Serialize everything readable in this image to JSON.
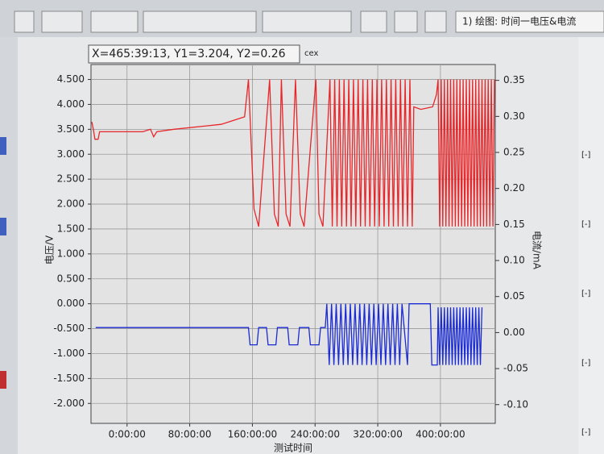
{
  "toolbar_title": "1) 绘图: 时间一电压&电流",
  "side_markers": [
    "[-]",
    "[-]",
    "[-]",
    "[-]",
    "[-]"
  ],
  "chart_data": {
    "type": "line",
    "readout": "X=465:39:13, Y1=3.204, Y2=0.26",
    "readout_note": "cex",
    "xlabel": "测试时间",
    "ylabel": "电压/V",
    "y2label": "电流/mA",
    "xlim": [
      -46,
      470
    ],
    "xticks": [
      {
        "value": 0,
        "label": "0:00:00"
      },
      {
        "value": 80,
        "label": "80:00:00"
      },
      {
        "value": 160,
        "label": "160:00:00"
      },
      {
        "value": 240,
        "label": "240:00:00"
      },
      {
        "value": 320,
        "label": "320:00:00"
      },
      {
        "value": 400,
        "label": "400:00:00"
      }
    ],
    "ylim": [
      -2.4,
      4.8
    ],
    "yticks": [
      {
        "value": 4.5,
        "label": "4.500"
      },
      {
        "value": 4,
        "label": "4.000"
      },
      {
        "value": 3.5,
        "label": "3.500"
      },
      {
        "value": 3,
        "label": "3.000"
      },
      {
        "value": 2.5,
        "label": "2.500"
      },
      {
        "value": 2,
        "label": "2.000"
      },
      {
        "value": 1.5,
        "label": "1.500"
      },
      {
        "value": 1,
        "label": "1.000"
      },
      {
        "value": 0.5,
        "label": "0.500"
      },
      {
        "value": 0,
        "label": "0.000"
      },
      {
        "value": -0.5,
        "label": "-0.500"
      },
      {
        "value": -1,
        "label": "-1.000"
      },
      {
        "value": -1.5,
        "label": "-1.500"
      },
      {
        "value": -2,
        "label": "-2.000"
      }
    ],
    "y2lim": [
      -0.126,
      0.372
    ],
    "y2ticks": [
      0.35,
      {
        "value": 0.3,
        "label": "0.30"
      },
      0.25,
      {
        "value": 0.2,
        "label": "0.20"
      },
      0.15,
      {
        "value": 0.1,
        "label": "0.10"
      },
      0.05,
      {
        "value": 0,
        "label": "0.00"
      },
      -0.05,
      {
        "value": -0.1,
        "label": "-0.10"
      }
    ],
    "grid": true,
    "series": [
      {
        "color": "#e8262a",
        "x": [
          -45,
          -43,
          -41,
          -37,
          -35,
          20,
          30,
          34,
          38,
          60,
          120,
          150,
          155,
          162,
          168,
          182,
          188,
          193,
          197,
          203,
          208,
          215,
          221,
          226,
          241,
          245,
          250,
          259,
          262,
          265,
          268,
          271,
          274,
          277,
          280,
          283,
          286,
          289,
          292,
          295,
          298,
          301,
          304,
          307,
          310,
          313,
          316,
          319,
          322,
          325,
          328,
          331,
          334,
          337,
          340,
          343,
          346,
          349,
          352,
          355,
          358,
          361,
          364,
          366,
          375,
          390,
          395,
          397,
          399,
          401,
          403,
          405,
          407,
          409,
          411,
          413,
          415,
          417,
          419,
          421,
          423,
          425,
          427,
          429,
          431,
          433,
          435,
          437,
          439,
          441,
          443,
          445,
          447,
          449,
          451,
          453,
          455,
          457,
          459,
          461,
          463,
          465,
          467,
          469
        ],
        "values": [
          3.65,
          3.5,
          3.3,
          3.3,
          3.45,
          3.45,
          3.5,
          3.35,
          3.45,
          3.5,
          3.6,
          3.75,
          4.5,
          1.9,
          1.55,
          4.5,
          1.8,
          1.55,
          4.5,
          1.8,
          1.55,
          4.5,
          1.8,
          1.55,
          4.5,
          1.8,
          1.55,
          4.5,
          1.55,
          4.5,
          1.55,
          4.5,
          1.55,
          4.5,
          1.55,
          4.5,
          1.55,
          4.5,
          1.55,
          4.5,
          1.55,
          4.5,
          1.55,
          4.5,
          1.55,
          4.5,
          1.55,
          4.5,
          1.55,
          4.5,
          1.55,
          4.5,
          1.55,
          4.5,
          1.55,
          4.5,
          1.55,
          4.5,
          1.55,
          4.5,
          1.55,
          4.5,
          1.55,
          3.95,
          3.9,
          3.95,
          4.2,
          4.5,
          1.55,
          4.5,
          1.55,
          4.5,
          1.55,
          4.5,
          1.55,
          4.5,
          1.55,
          4.5,
          1.55,
          4.5,
          1.55,
          4.5,
          1.55,
          4.5,
          1.55,
          4.5,
          1.55,
          4.5,
          1.55,
          4.5,
          1.55,
          4.5,
          1.55,
          4.5,
          1.55,
          4.5,
          1.55,
          4.5,
          1.55,
          4.5,
          1.55,
          4.5,
          1.55,
          4.5
        ]
      },
      {
        "color": "#1a2bd6",
        "axis": "y2",
        "x": [
          -40,
          155,
          157,
          166,
          168,
          178,
          180,
          190,
          192,
          205,
          207,
          218,
          220,
          232,
          234,
          245,
          247,
          253,
          255,
          258,
          261,
          264,
          267,
          270,
          273,
          276,
          279,
          282,
          285,
          288,
          291,
          294,
          297,
          300,
          303,
          306,
          309,
          312,
          315,
          318,
          321,
          324,
          327,
          330,
          333,
          336,
          339,
          342,
          345,
          348,
          351,
          358,
          360,
          387,
          389,
          396,
          397,
          399,
          401,
          403,
          405,
          407,
          409,
          411,
          413,
          415,
          417,
          419,
          421,
          423,
          425,
          427,
          429,
          431,
          433,
          435,
          437,
          439,
          441,
          443,
          445,
          447,
          449,
          451,
          453
        ],
        "values": [
          0.007,
          0.007,
          -0.017,
          -0.017,
          0.007,
          0.007,
          -0.017,
          -0.017,
          0.007,
          0.007,
          -0.017,
          -0.017,
          0.007,
          0.007,
          -0.017,
          -0.017,
          0.007,
          0.007,
          0.04,
          -0.045,
          0.04,
          -0.045,
          0.04,
          -0.045,
          0.04,
          -0.045,
          0.04,
          -0.045,
          0.04,
          -0.045,
          0.04,
          -0.045,
          0.04,
          -0.045,
          0.04,
          -0.045,
          0.04,
          -0.045,
          0.04,
          -0.045,
          0.04,
          -0.045,
          0.04,
          -0.045,
          0.04,
          -0.045,
          0.04,
          -0.045,
          0.04,
          -0.045,
          0.04,
          -0.045,
          0.04,
          0.04,
          -0.045,
          -0.045,
          0.035,
          -0.045,
          0.035,
          -0.045,
          0.035,
          -0.045,
          0.035,
          -0.045,
          0.035,
          -0.045,
          0.035,
          -0.045,
          0.035,
          -0.045,
          0.035,
          -0.045,
          0.035,
          -0.045,
          0.035,
          -0.045,
          0.035,
          -0.045,
          0.035,
          -0.045,
          0.035,
          -0.045,
          0.035,
          -0.045,
          0.035
        ]
      }
    ]
  }
}
